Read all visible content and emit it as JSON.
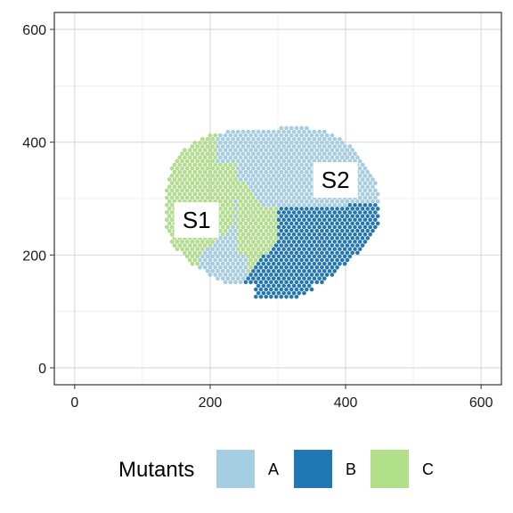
{
  "chart_data": {
    "type": "scatter",
    "title": "",
    "xlabel": "",
    "ylabel": "",
    "xlim": [
      -30,
      630
    ],
    "ylim": [
      -30,
      630
    ],
    "x_ticks": [
      0,
      200,
      400,
      600
    ],
    "y_ticks": [
      0,
      200,
      400,
      600
    ],
    "x_tick_labels": [
      "0",
      "200",
      "400",
      "600"
    ],
    "y_tick_labels": [
      "0",
      "200",
      "400",
      "600"
    ],
    "grid": true,
    "legend_position": "bottom",
    "legend": {
      "title": "Mutants",
      "entries": [
        {
          "label": "A",
          "color": "#a6cee3"
        },
        {
          "label": "B",
          "color": "#1f78b4"
        },
        {
          "label": "C",
          "color": "#b2df8a"
        }
      ]
    },
    "series": [
      {
        "name": "A",
        "color": "#a6cee3",
        "region": "upper and upper-right portion of the disk (approx. 400 to 440 in y, 200 to 450 in x)"
      },
      {
        "name": "B",
        "color": "#1f78b4",
        "region": "lower-right portion of the disk (approx. 125 to 280 in y, 260 to 450 in x)"
      },
      {
        "name": "C",
        "color": "#b2df8a",
        "region": "left portion of the disk (approx. 140 to 380 in y, 130 to 325 in x)"
      }
    ],
    "annotations": [
      {
        "text": "S1",
        "x": 180,
        "y": 262
      },
      {
        "text": "S2",
        "x": 385,
        "y": 333
      }
    ]
  }
}
